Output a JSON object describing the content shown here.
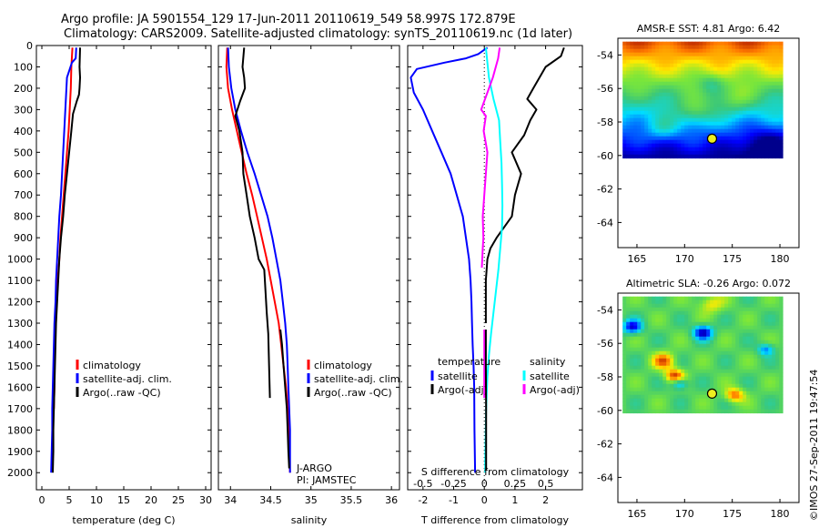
{
  "title": {
    "line1": "Argo profile: JA 5901554_129 17-Jun-2011 20110619_549 58.997S 172.879E",
    "line2": "Climatology: CARS2009. Satellite-adjusted climatology: synTS_20110619.nc (1d later)"
  },
  "timestamp": "©IMOS 27-Sep-2011 19:47:54",
  "colors": {
    "climatology": "#ff0000",
    "satellite": "#0000ff",
    "argo": "#000000",
    "sal_satellite": "#00ffff",
    "sal_argo": "#ff00ff"
  },
  "chart_data": [
    {
      "id": "temperature",
      "type": "line",
      "xlabel": "temperature (deg C)",
      "ylabel": "",
      "xlim": [
        -1,
        31
      ],
      "ylim": [
        2080,
        0
      ],
      "xticks": [
        "0",
        "5",
        "10",
        "15",
        "20",
        "25",
        "30"
      ],
      "xtick_values": [
        0,
        5,
        10,
        15,
        20,
        25,
        30
      ],
      "yticks": [
        "0",
        "100",
        "200",
        "300",
        "400",
        "500",
        "600",
        "700",
        "800",
        "900",
        "1000",
        "1100",
        "1200",
        "1300",
        "1400",
        "1500",
        "1600",
        "1700",
        "1800",
        "1900",
        "2000"
      ],
      "ytick_values": [
        0,
        100,
        200,
        300,
        400,
        500,
        600,
        700,
        800,
        900,
        1000,
        1100,
        1200,
        1300,
        1400,
        1500,
        1600,
        1700,
        1800,
        1900,
        2000
      ],
      "legend": [
        {
          "label": "climatology",
          "color": "#ff0000"
        },
        {
          "label": "satellite-adj. clim.",
          "color": "#0000ff"
        },
        {
          "label": "Argo(..raw -QC)",
          "color": "#000000"
        }
      ],
      "series": [
        {
          "name": "climatology",
          "color": "#ff0000",
          "x": [
            5.6,
            5.4,
            5.3,
            5.1,
            4.9,
            4.6,
            4.3,
            4.0,
            3.7,
            3.4,
            3.2,
            2.9,
            2.7,
            2.5,
            2.4,
            2.3,
            2.3,
            2.2
          ],
          "y": [
            10,
            100,
            200,
            300,
            400,
            500,
            600,
            700,
            800,
            900,
            1000,
            1100,
            1200,
            1300,
            1400,
            1500,
            1600,
            1700
          ]
        },
        {
          "name": "satellite-adj. clim.",
          "color": "#0000ff",
          "x": [
            6.3,
            6.2,
            5.5,
            4.6,
            4.3,
            4.1,
            3.9,
            3.7,
            3.5,
            3.2,
            3.0,
            2.8,
            2.6,
            2.5,
            2.3,
            2.2,
            2.1,
            2.0,
            1.9,
            1.9,
            1.8,
            1.7
          ],
          "y": [
            10,
            60,
            80,
            150,
            300,
            400,
            500,
            600,
            700,
            800,
            900,
            1000,
            1100,
            1200,
            1300,
            1400,
            1500,
            1600,
            1700,
            1800,
            1900,
            2000
          ]
        },
        {
          "name": "Argo(..raw -QC)",
          "color": "#000000",
          "x": [
            7.0,
            6.9,
            7.0,
            6.9,
            6.8,
            6.4,
            5.7,
            5.4,
            5.0,
            4.6,
            4.2,
            3.9,
            3.5,
            3.2,
            3.0,
            2.8,
            2.6,
            2.5,
            2.4,
            2.3,
            2.2,
            2.1,
            2.1,
            2.0
          ],
          "y": [
            10,
            100,
            150,
            200,
            230,
            260,
            320,
            400,
            500,
            600,
            700,
            800,
            900,
            1000,
            1100,
            1200,
            1300,
            1400,
            1500,
            1600,
            1700,
            1800,
            1900,
            2000
          ]
        }
      ]
    },
    {
      "id": "salinity",
      "type": "line",
      "xlabel": "salinity",
      "ylabel": "",
      "xlim": [
        33.85,
        36.1
      ],
      "ylim": [
        2080,
        0
      ],
      "xticks": [
        "34",
        "34.5",
        "35",
        "35.5",
        "36"
      ],
      "xtick_values": [
        34,
        34.5,
        35,
        35.5,
        36
      ],
      "annotation": [
        "J-ARGO",
        "PI: JAMSTEC"
      ],
      "legend": [
        {
          "label": "climatology",
          "color": "#ff0000"
        },
        {
          "label": "satellite-adj. clim.",
          "color": "#0000ff"
        },
        {
          "label": "Argo(..raw -QC)",
          "color": "#000000"
        }
      ],
      "series": [
        {
          "name": "climatology",
          "color": "#ff0000",
          "x": [
            33.96,
            33.95,
            33.97,
            34.02,
            34.08,
            34.14,
            34.2,
            34.27,
            34.33,
            34.39,
            34.45,
            34.5,
            34.55,
            34.6,
            34.63,
            34.66,
            34.69,
            34.71,
            34.72,
            34.73,
            34.74
          ],
          "y": [
            10,
            100,
            200,
            300,
            400,
            500,
            600,
            700,
            800,
            900,
            1000,
            1100,
            1200,
            1300,
            1400,
            1500,
            1600,
            1700,
            1800,
            1900,
            2000
          ]
        },
        {
          "name": "satellite-adj. clim.",
          "color": "#0000ff",
          "x": [
            33.97,
            33.98,
            34.01,
            34.06,
            34.13,
            34.21,
            34.3,
            34.38,
            34.46,
            34.52,
            34.57,
            34.62,
            34.65,
            34.68,
            34.7,
            34.71,
            34.72,
            34.73,
            34.74,
            34.74,
            34.74
          ],
          "y": [
            10,
            100,
            200,
            300,
            400,
            500,
            600,
            700,
            800,
            900,
            1000,
            1100,
            1200,
            1300,
            1400,
            1500,
            1600,
            1700,
            1800,
            1900,
            2000
          ]
        },
        {
          "name": "Argo(..raw -QC)",
          "color": "#000000",
          "x": [
            34.17,
            34.15,
            34.17,
            34.18,
            34.12,
            34.06,
            34.11,
            34.15,
            34.16,
            34.2,
            34.24,
            34.3,
            34.35,
            34.42,
            34.45,
            34.47,
            34.48,
            34.49
          ],
          "y": [
            10,
            100,
            150,
            200,
            260,
            330,
            400,
            500,
            600,
            700,
            800,
            900,
            1000,
            1050,
            1250,
            1350,
            1500,
            1650
          ]
        },
        {
          "name": "Argo deep",
          "color": "#000000",
          "x": [
            34.62,
            34.64,
            34.66,
            34.68,
            34.7,
            34.71,
            34.72,
            34.73
          ],
          "y": [
            1330,
            1400,
            1500,
            1600,
            1700,
            1800,
            1900,
            1980
          ]
        }
      ]
    },
    {
      "id": "difference",
      "type": "line",
      "xlabel": "T difference from climatology",
      "x2label": "S difference from climatology",
      "ylabel": "",
      "xlim": [
        -2.5,
        3.2
      ],
      "ylim": [
        2080,
        0
      ],
      "xticks": [
        "-2",
        "-1",
        "0",
        "1",
        "2"
      ],
      "xtick_values": [
        -2,
        -1,
        0,
        1,
        2
      ],
      "x2ticks": [
        "-0.5",
        "-0.25",
        "0",
        "0.25",
        "0.5"
      ],
      "x2tick_values": [
        -0.5,
        -0.25,
        0,
        0.25,
        0.5
      ],
      "legend_temperature": {
        "title": "temperature",
        "items": [
          {
            "label": "satellite",
            "color": "#0000ff"
          },
          {
            "label": "Argo(-adj)",
            "color": "#000000"
          }
        ]
      },
      "legend_salinity": {
        "title": "salinity",
        "items": [
          {
            "label": "satellite",
            "color": "#00ffff"
          },
          {
            "label": "Argo(-adj)",
            "color": "#ff00ff"
          }
        ]
      },
      "series": [
        {
          "name": "T satellite",
          "color": "#0000ff",
          "x": [
            0.1,
            -0.2,
            -0.6,
            -1.3,
            -2.2,
            -2.4,
            -2.3,
            -2.0,
            -1.7,
            -1.4,
            -1.1,
            -0.9,
            -0.7,
            -0.6,
            -0.5,
            -0.45,
            -0.42,
            -0.4,
            -0.38,
            -0.35,
            -0.33,
            -0.32,
            -0.3
          ],
          "y": [
            10,
            40,
            60,
            80,
            110,
            150,
            220,
            300,
            400,
            500,
            600,
            700,
            800,
            900,
            1000,
            1100,
            1200,
            1300,
            1400,
            1500,
            1600,
            1800,
            2000
          ]
        },
        {
          "name": "T Argo(-adj)",
          "color": "#000000",
          "x": [
            2.6,
            2.5,
            2.0,
            1.6,
            1.4,
            1.7,
            1.5,
            1.3,
            0.9,
            1.2,
            1.0,
            0.9,
            0.4,
            0.2,
            0.1,
            0.05,
            0.05
          ],
          "y": [
            10,
            50,
            100,
            200,
            250,
            300,
            350,
            420,
            500,
            600,
            700,
            800,
            900,
            950,
            1000,
            1100,
            1300
          ]
        },
        {
          "name": "S satellite",
          "color": "#00ffff",
          "x": [
            0.05,
            0.1,
            0.15,
            0.3,
            0.48,
            0.52,
            0.56,
            0.58,
            0.59,
            0.58,
            0.52,
            0.46,
            0.38,
            0.3,
            0.22,
            0.15,
            0.1,
            0.06,
            0.04,
            0.03,
            0.03
          ],
          "y": [
            10,
            80,
            150,
            250,
            350,
            450,
            550,
            650,
            750,
            850,
            950,
            1050,
            1150,
            1250,
            1350,
            1450,
            1550,
            1700,
            1850,
            1950,
            2000
          ]
        },
        {
          "name": "S Argo(-adj)",
          "color": "#ff00ff",
          "x": [
            0.5,
            0.45,
            0.28,
            -0.1,
            0.05,
            -0.02,
            0.1,
            0.05,
            0.0,
            -0.05,
            -0.03,
            -0.05,
            -0.08
          ],
          "y": [
            10,
            60,
            150,
            300,
            330,
            400,
            500,
            600,
            700,
            800,
            900,
            950,
            1040
          ]
        },
        {
          "name": "S Argo deep",
          "color": "#ff00ff",
          "x": [
            0.0,
            0.0,
            0.0
          ],
          "y": [
            1330,
            1500,
            1650
          ]
        },
        {
          "name": "T Argo deep",
          "color": "#000000",
          "x": [
            0.05,
            0.05,
            0.06,
            0.06
          ],
          "y": [
            1330,
            1500,
            1700,
            1990
          ]
        }
      ]
    },
    {
      "id": "sst_map",
      "type": "heatmap",
      "title": "AMSR-E SST: 4.81  Argo: 6.42",
      "xlim": [
        163,
        182
      ],
      "ylim": [
        -65.5,
        -53
      ],
      "data_lon": [
        163.5,
        180
      ],
      "data_lat": [
        -60,
        -53.2
      ],
      "xticks": [
        "165",
        "170",
        "175",
        "180"
      ],
      "xtick_values": [
        165,
        170,
        175,
        180
      ],
      "yticks": [
        "-54",
        "-56",
        "-58",
        "-60",
        "-62",
        "-64"
      ],
      "ytick_values": [
        -54,
        -56,
        -58,
        -60,
        -62,
        -64
      ],
      "marker": {
        "lon": 172.879,
        "lat": -58.997
      }
    },
    {
      "id": "sla_map",
      "type": "heatmap",
      "title": "Altimetric SLA: -0.26  Argo: 0.072",
      "xlim": [
        163,
        182
      ],
      "ylim": [
        -65.5,
        -53
      ],
      "data_lon": [
        163.5,
        180
      ],
      "data_lat": [
        -60,
        -53.2
      ],
      "xticks": [
        "165",
        "170",
        "175",
        "180"
      ],
      "xtick_values": [
        165,
        170,
        175,
        180
      ],
      "yticks": [
        "-54",
        "-56",
        "-58",
        "-60",
        "-62",
        "-64"
      ],
      "ytick_values": [
        -54,
        -56,
        -58,
        -60,
        -62,
        -64
      ],
      "marker": {
        "lon": 172.879,
        "lat": -58.997
      }
    }
  ]
}
